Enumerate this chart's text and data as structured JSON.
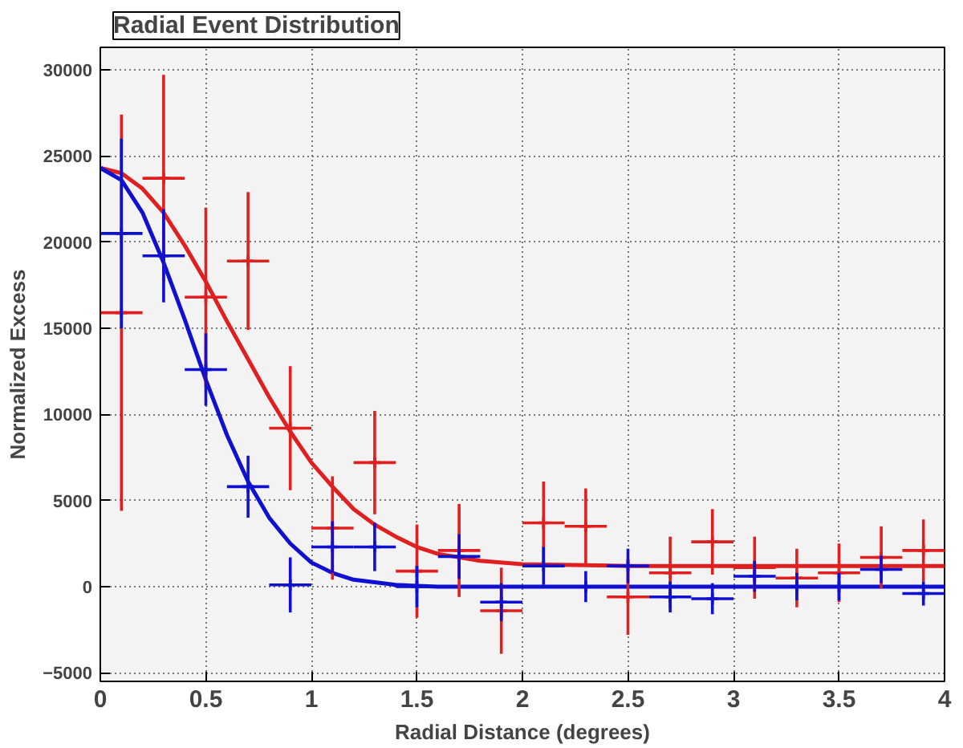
{
  "chart_data": {
    "type": "scatter",
    "title": "Radial Event Distribution",
    "xlabel": "Radial Distance (degrees)",
    "ylabel": "Normalized Excess",
    "xlim": [
      0,
      4
    ],
    "ylim": [
      -5500,
      31300
    ],
    "xticks": [
      0,
      0.5,
      1,
      1.5,
      2,
      2.5,
      3,
      3.5,
      4
    ],
    "yticks": [
      -5000,
      0,
      5000,
      10000,
      15000,
      20000,
      25000,
      30000
    ],
    "grid": true,
    "x": [
      0.1,
      0.3,
      0.5,
      0.7,
      0.9,
      1.1,
      1.3,
      1.5,
      1.7,
      1.9,
      2.1,
      2.3,
      2.5,
      2.7,
      2.9,
      3.1,
      3.3,
      3.5,
      3.7,
      3.9
    ],
    "series": [
      {
        "type": "line",
        "color": "#e02020",
        "x": [
          0,
          0.1,
          0.2,
          0.3,
          0.4,
          0.5,
          0.6,
          0.7,
          0.8,
          0.9,
          1.0,
          1.1,
          1.2,
          1.3,
          1.4,
          1.5,
          1.6,
          1.8,
          2.0,
          2.5,
          4
        ],
        "values": [
          24300,
          24000,
          23100,
          21700,
          19800,
          17700,
          15400,
          13200,
          11000,
          9000,
          7200,
          5800,
          4500,
          3600,
          2900,
          2300,
          1900,
          1500,
          1300,
          1200,
          1200
        ]
      },
      {
        "type": "line",
        "color": "#1010d0",
        "x": [
          0,
          0.1,
          0.2,
          0.3,
          0.4,
          0.5,
          0.6,
          0.7,
          0.8,
          0.9,
          1.0,
          1.1,
          1.2,
          1.4,
          1.6,
          2.0,
          4
        ],
        "values": [
          24300,
          23600,
          21700,
          18800,
          15500,
          12000,
          8800,
          6100,
          4000,
          2500,
          1400,
          800,
          400,
          100,
          0,
          0,
          0
        ]
      },
      {
        "color": "#e02020",
        "values": [
          15900,
          23700,
          16800,
          18900,
          9200,
          3400,
          7200,
          900,
          2100,
          -1400,
          3700,
          3500,
          -600,
          800,
          2600,
          1100,
          500,
          800,
          1700,
          2100
        ],
        "errors": [
          11500,
          6000,
          5200,
          4000,
          3600,
          3000,
          3000,
          2700,
          2700,
          2500,
          2400,
          2200,
          2200,
          2100,
          1900,
          1800,
          1700,
          1700,
          1800,
          1800
        ],
        "xerrors": [
          0.1,
          0.1,
          0.1,
          0.1,
          0.1,
          0.1,
          0.1,
          0.1,
          0.1,
          0.1,
          0.1,
          0.1,
          0.1,
          0.1,
          0.1,
          0.1,
          0.1,
          0.1,
          0.1,
          0.1
        ]
      },
      {
        "color": "#1010d0",
        "values": [
          20500,
          19200,
          12600,
          5800,
          100,
          2300,
          2300,
          0,
          1750,
          -900,
          1200,
          0,
          1200,
          -600,
          -700,
          600,
          0,
          0,
          1000,
          -400
        ],
        "errors": [
          5500,
          2700,
          2100,
          1800,
          1600,
          1500,
          1400,
          1200,
          1300,
          1100,
          1100,
          900,
          1000,
          900,
          900,
          900,
          800,
          800,
          800,
          700
        ],
        "xerrors": [
          0.1,
          0.1,
          0.1,
          0.1,
          0.1,
          0.1,
          0.1,
          0.1,
          0.1,
          0.1,
          0.1,
          0.1,
          0.1,
          0.1,
          0.1,
          0.1,
          0.1,
          0.1,
          0.1,
          0.1
        ]
      }
    ]
  }
}
